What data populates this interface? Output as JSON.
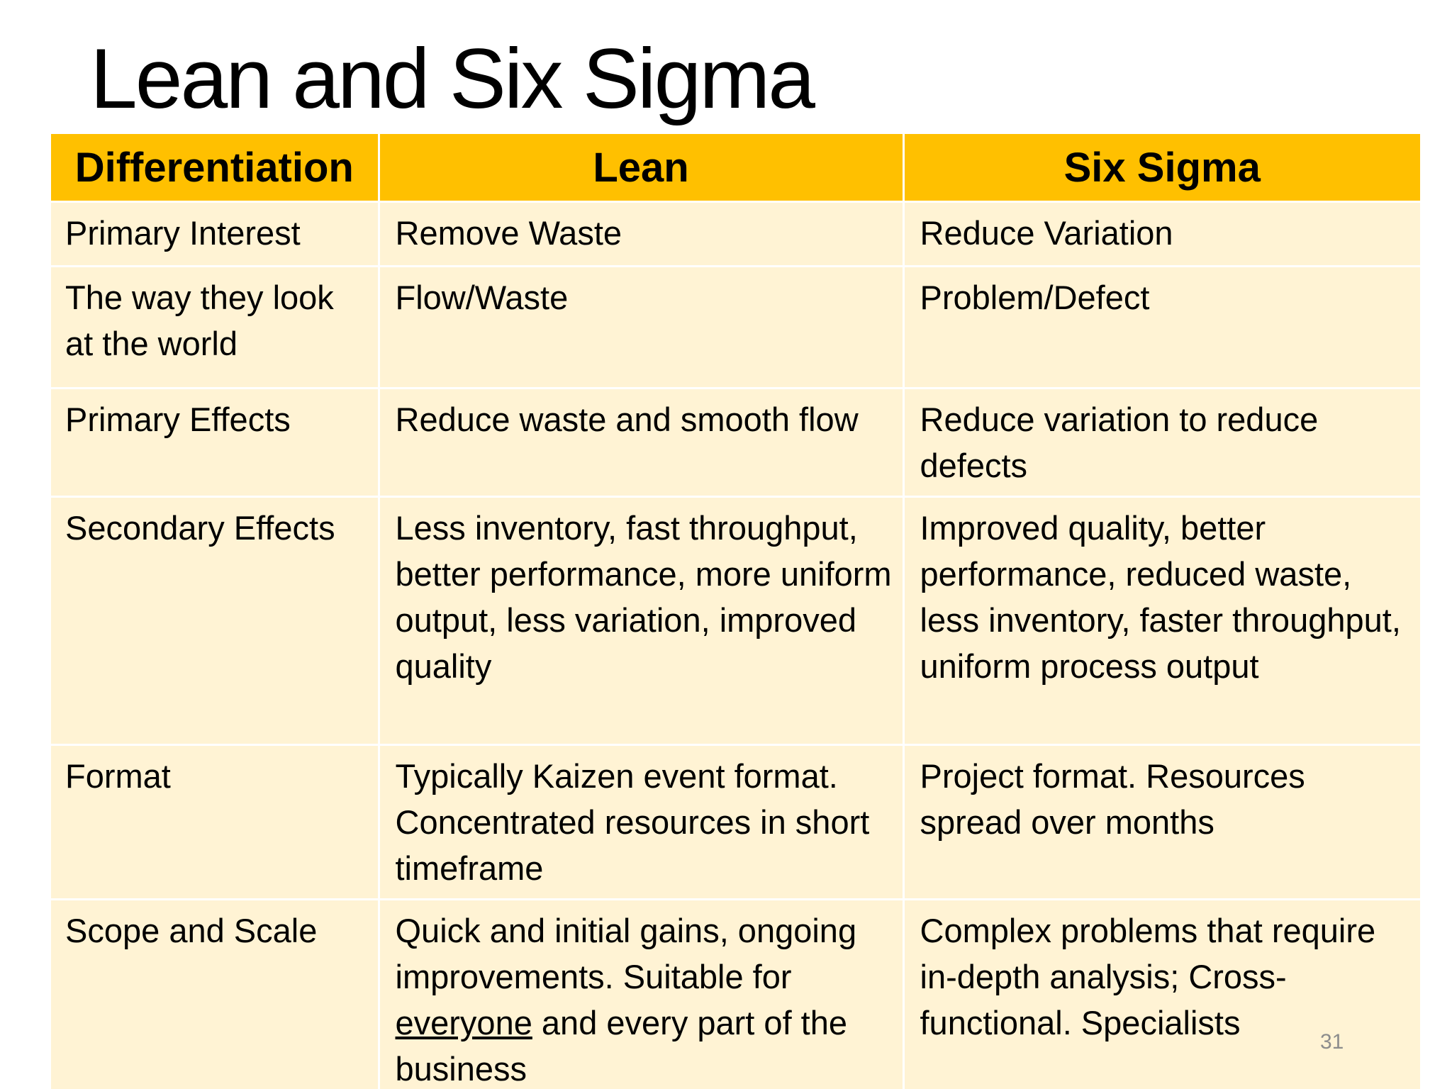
{
  "slide": {
    "title": "Lean and Six Sigma",
    "page_number": "31"
  },
  "table": {
    "headers": [
      "Differentiation",
      "Lean",
      "Six Sigma"
    ],
    "rows": [
      {
        "label": "Primary Interest",
        "lean": "Remove Waste",
        "six_sigma": "Reduce Variation"
      },
      {
        "label": "The way they look at the world",
        "lean": "Flow/Waste",
        "six_sigma": "Problem/Defect"
      },
      {
        "label": "Primary Effects",
        "lean": "Reduce waste and smooth flow",
        "six_sigma": "Reduce variation to reduce defects"
      },
      {
        "label": "Secondary Effects",
        "lean": "Less inventory, fast throughput, better performance, more uniform output, less variation, improved quality",
        "six_sigma": "Improved quality, better performance, reduced waste, less inventory, faster throughput, uniform process output"
      },
      {
        "label": "Format",
        "lean": "Typically Kaizen event format. Concentrated resources in short timeframe",
        "six_sigma": "Project format.  Resources spread over months"
      },
      {
        "label": "Scope and Scale",
        "lean_before": "Quick and initial gains, ongoing improvements. Suitable for ",
        "lean_underlined": "everyone",
        "lean_after": " and every part of the business",
        "six_sigma": "Complex problems that require in-depth analysis; Cross-functional.    Specialists"
      }
    ]
  },
  "colors": {
    "header_fill": "#ffc000",
    "cell_fill": "#fff3d4",
    "title_text": "#000000",
    "page_number_text": "#8c8c8c"
  }
}
